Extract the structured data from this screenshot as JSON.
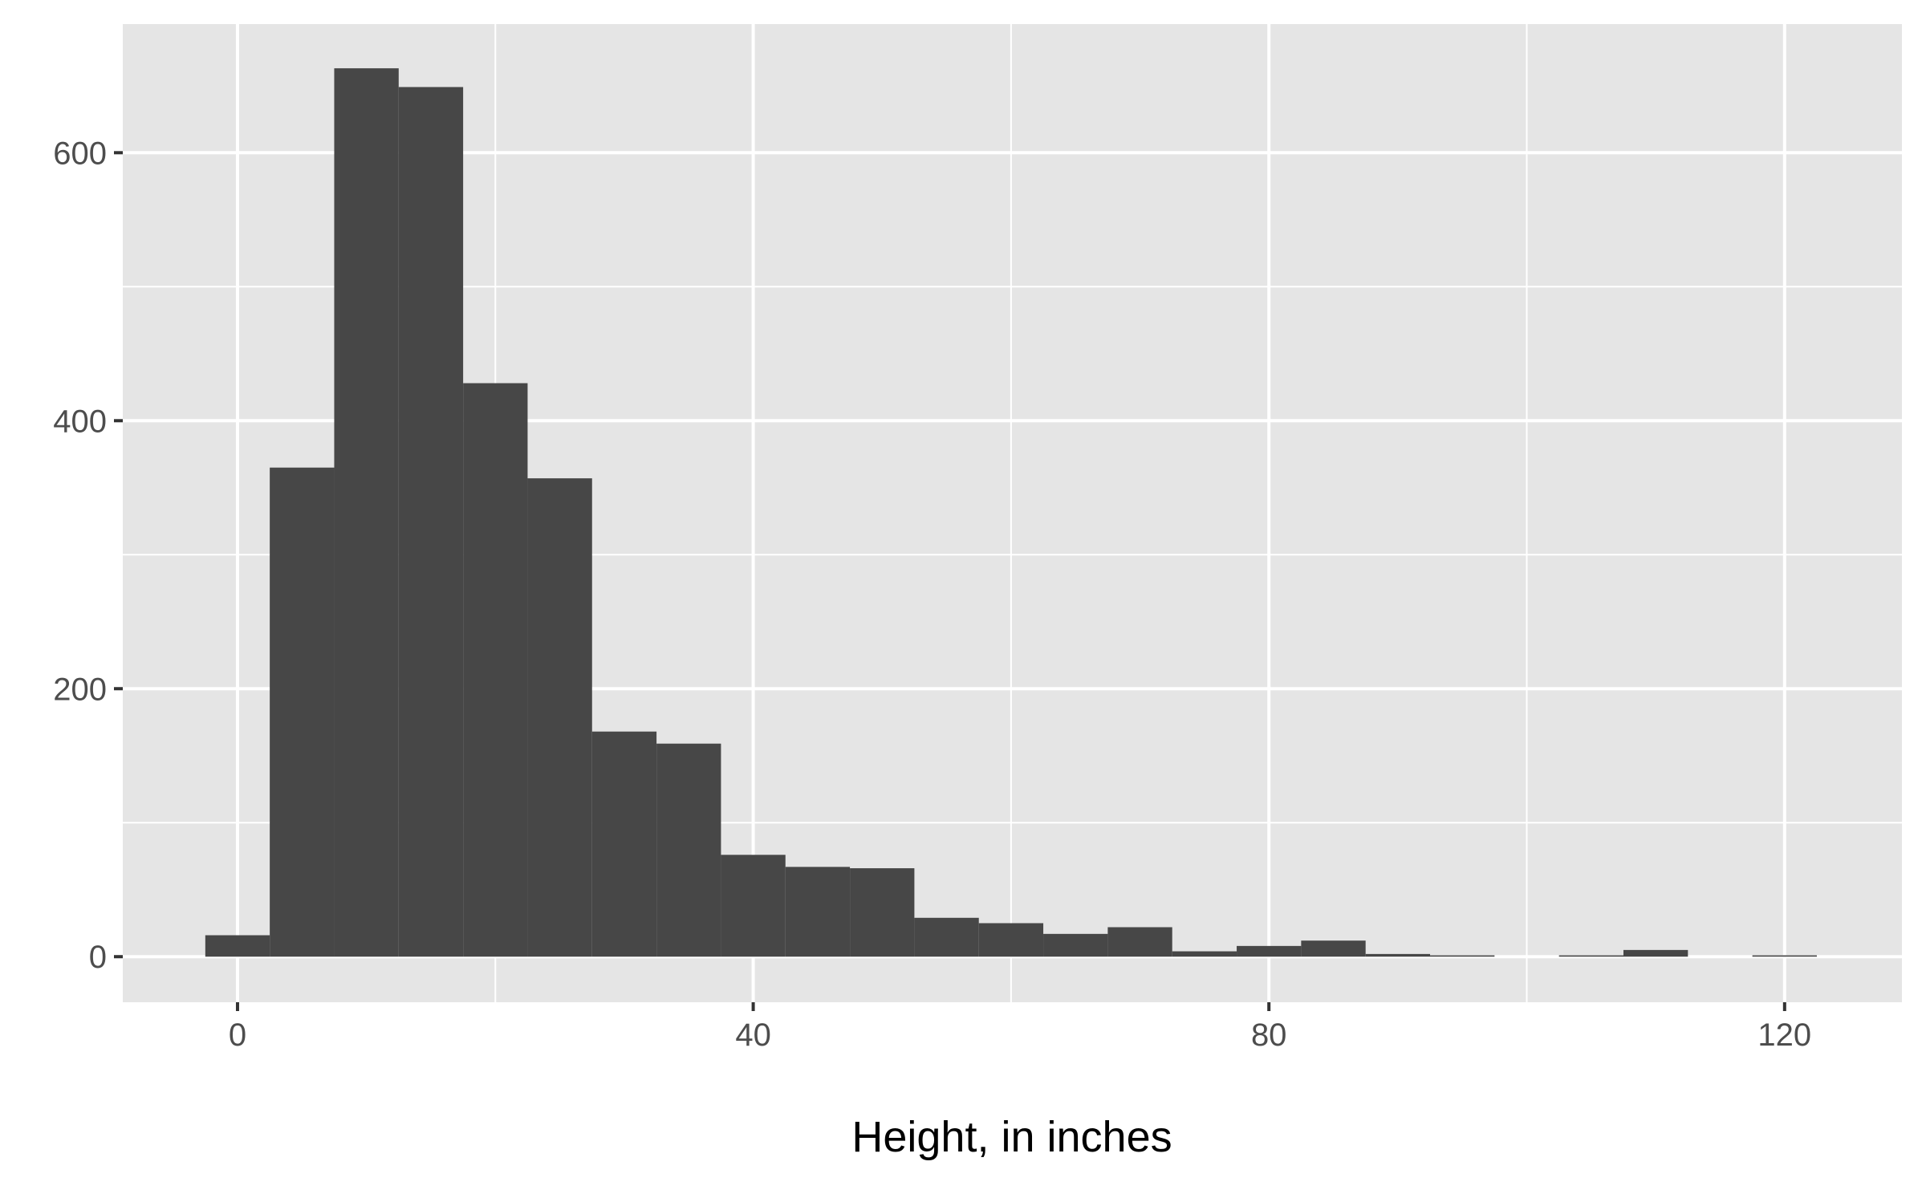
{
  "chart_data": {
    "type": "bar",
    "subtype": "histogram",
    "title": "",
    "xlabel": "Height, in inches",
    "ylabel": "",
    "bin_width": 5,
    "bins": [
      {
        "x0": -2.5,
        "x1": 2.5,
        "count": 16
      },
      {
        "x0": 2.5,
        "x1": 7.5,
        "count": 365
      },
      {
        "x0": 7.5,
        "x1": 12.5,
        "count": 663
      },
      {
        "x0": 12.5,
        "x1": 17.5,
        "count": 649
      },
      {
        "x0": 17.5,
        "x1": 22.5,
        "count": 428
      },
      {
        "x0": 22.5,
        "x1": 27.5,
        "count": 357
      },
      {
        "x0": 27.5,
        "x1": 32.5,
        "count": 168
      },
      {
        "x0": 32.5,
        "x1": 37.5,
        "count": 159
      },
      {
        "x0": 37.5,
        "x1": 42.5,
        "count": 76
      },
      {
        "x0": 42.5,
        "x1": 47.5,
        "count": 67
      },
      {
        "x0": 47.5,
        "x1": 52.5,
        "count": 66
      },
      {
        "x0": 52.5,
        "x1": 57.5,
        "count": 29
      },
      {
        "x0": 57.5,
        "x1": 62.5,
        "count": 25
      },
      {
        "x0": 62.5,
        "x1": 67.5,
        "count": 17
      },
      {
        "x0": 67.5,
        "x1": 72.5,
        "count": 22
      },
      {
        "x0": 72.5,
        "x1": 77.5,
        "count": 4
      },
      {
        "x0": 77.5,
        "x1": 82.5,
        "count": 8
      },
      {
        "x0": 82.5,
        "x1": 87.5,
        "count": 12
      },
      {
        "x0": 87.5,
        "x1": 92.5,
        "count": 2
      },
      {
        "x0": 92.5,
        "x1": 97.5,
        "count": 1
      },
      {
        "x0": 97.5,
        "x1": 102.5,
        "count": 0
      },
      {
        "x0": 102.5,
        "x1": 107.5,
        "count": 1
      },
      {
        "x0": 107.5,
        "x1": 112.5,
        "count": 5
      },
      {
        "x0": 112.5,
        "x1": 117.5,
        "count": 0
      },
      {
        "x0": 117.5,
        "x1": 122.5,
        "count": 1
      }
    ],
    "xlim": [
      -8.9,
      129.1
    ],
    "ylim": [
      -34,
      696
    ],
    "x_ticks": [
      {
        "value": 0,
        "label": "0"
      },
      {
        "value": 40,
        "label": "40"
      },
      {
        "value": 80,
        "label": "80"
      },
      {
        "value": 120,
        "label": "120"
      }
    ],
    "x_minor_ticks": [
      20,
      60,
      100
    ],
    "y_ticks": [
      {
        "value": 0,
        "label": "0"
      },
      {
        "value": 200,
        "label": "200"
      },
      {
        "value": 400,
        "label": "400"
      },
      {
        "value": 600,
        "label": "600"
      }
    ],
    "y_minor_ticks": [
      100,
      300,
      500
    ],
    "grid": true,
    "legend": "none",
    "colors": {
      "bar_fill": "#474747",
      "panel_background": "#e5e5e5",
      "grid_line": "#ffffff",
      "tick_mark": "#333333",
      "tick_label": "#4d4d4d",
      "axis_title": "#000000"
    }
  }
}
